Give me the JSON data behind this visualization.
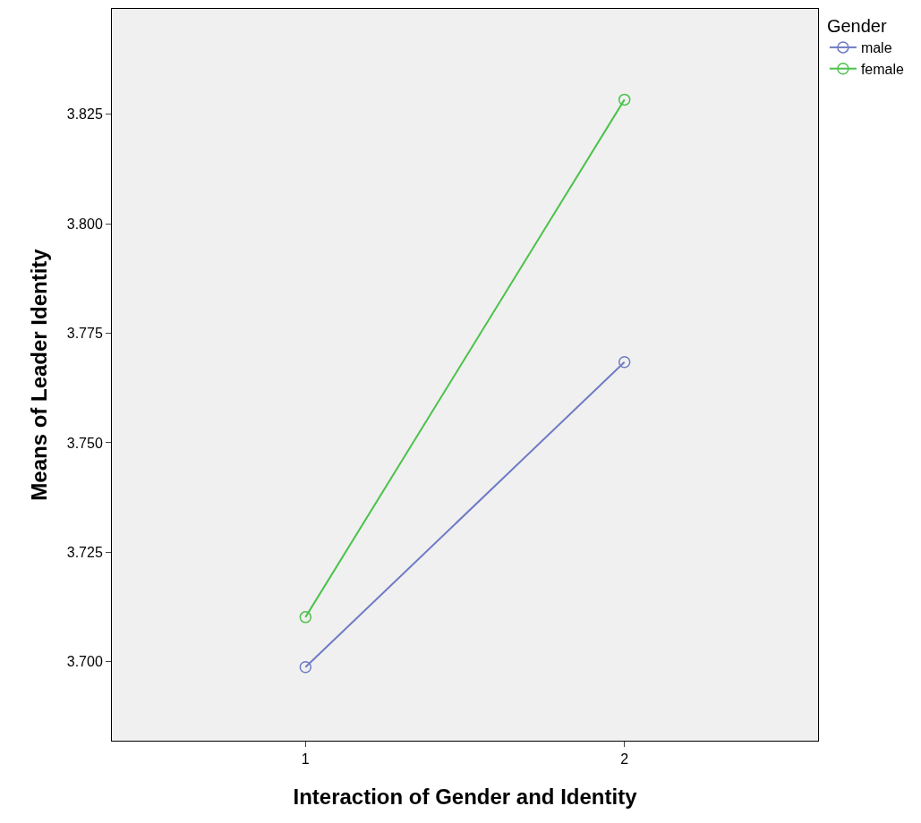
{
  "chart_data": {
    "type": "line",
    "xlabel": "Interaction of Gender and Identity",
    "ylabel": "Means of Leader Identity",
    "legend_title": "Gender",
    "categories": [
      "1",
      "2"
    ],
    "series": [
      {
        "name": "male",
        "color": "#6f7bc6",
        "values": [
          3.6988,
          3.7684
        ]
      },
      {
        "name": "female",
        "color": "#4cc24c",
        "values": [
          3.7102,
          3.8283
        ]
      }
    ],
    "ylim": [
      3.682,
      3.849
    ],
    "yticks": [
      {
        "value": 3.7,
        "label": "3.700"
      },
      3.725,
      {
        "value": 3.75,
        "label": "3.750"
      },
      3.775,
      {
        "value": 3.8,
        "label": "3.800"
      },
      3.825
    ],
    "grid": false,
    "legend": "top right",
    "marker": "circle",
    "line_style": "solid"
  }
}
